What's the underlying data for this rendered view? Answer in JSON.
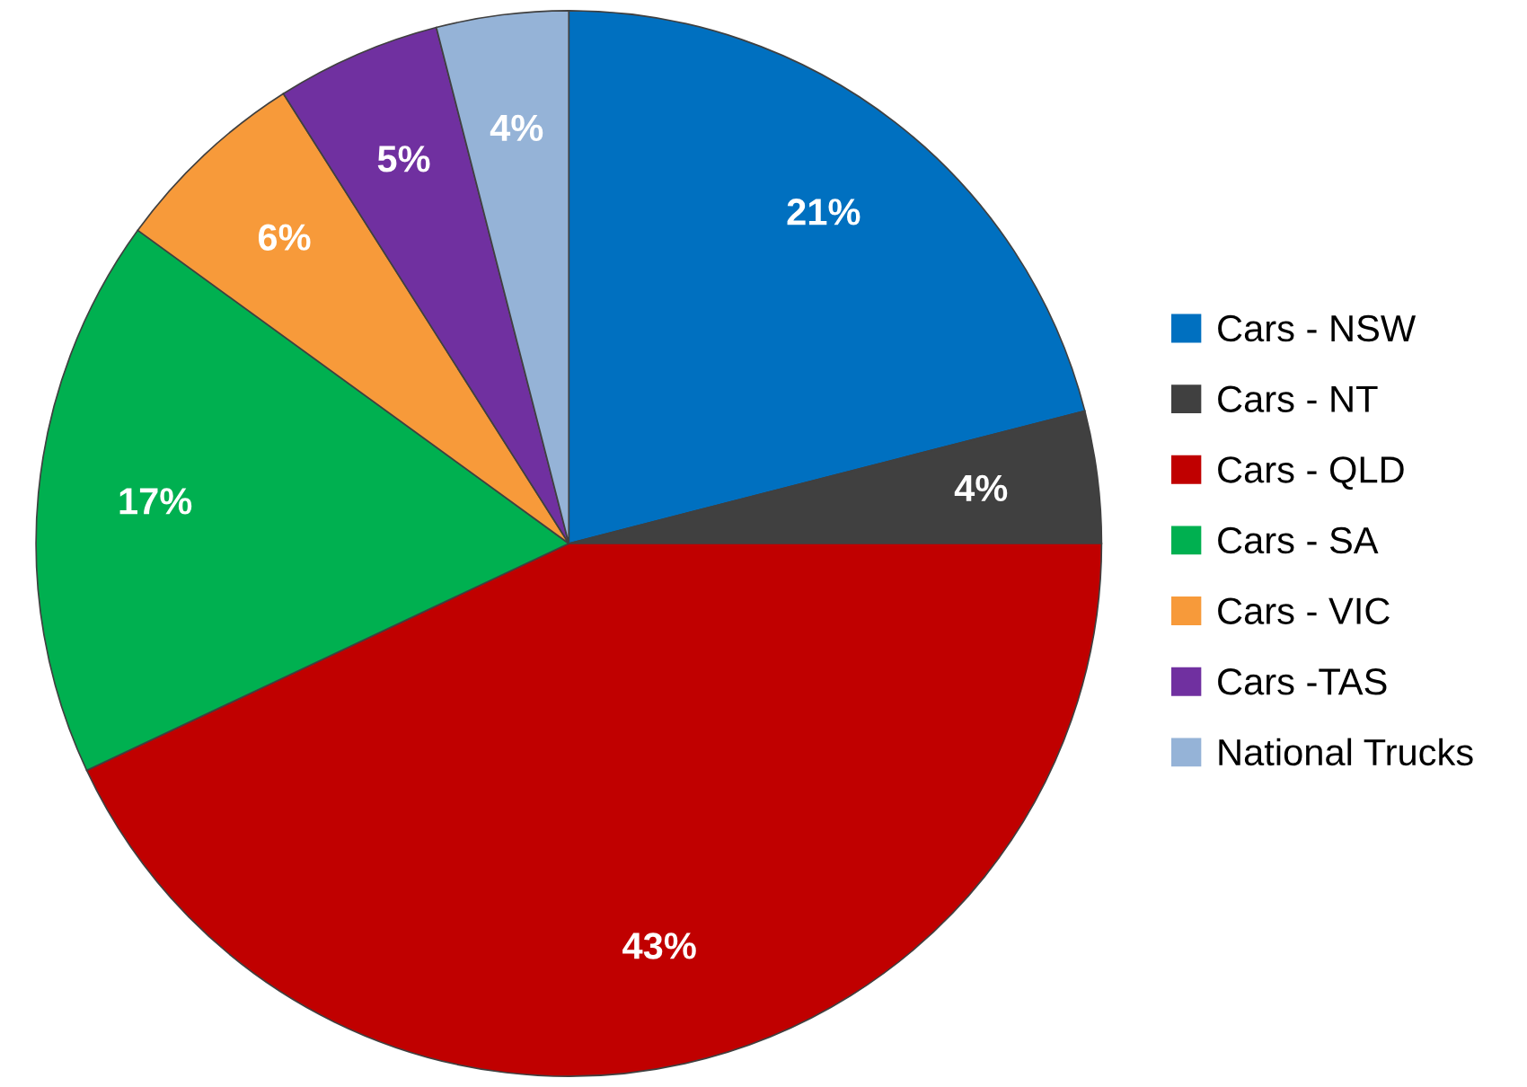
{
  "chart_data": {
    "type": "pie",
    "categories": [
      "Cars - NSW",
      "Cars - NT",
      "Cars - QLD",
      "Cars - SA",
      "Cars - VIC",
      "Cars -TAS",
      "National Trucks"
    ],
    "values": [
      21,
      4,
      43,
      17,
      6,
      5,
      4
    ],
    "value_labels": [
      "21%",
      "4%",
      "43%",
      "17%",
      "6%",
      "5%",
      "4%"
    ],
    "colors": [
      "#0070c0",
      "#404040",
      "#c00000",
      "#00b050",
      "#f79a3a",
      "#7030a0",
      "#95b3d7"
    ],
    "legend": "right"
  }
}
